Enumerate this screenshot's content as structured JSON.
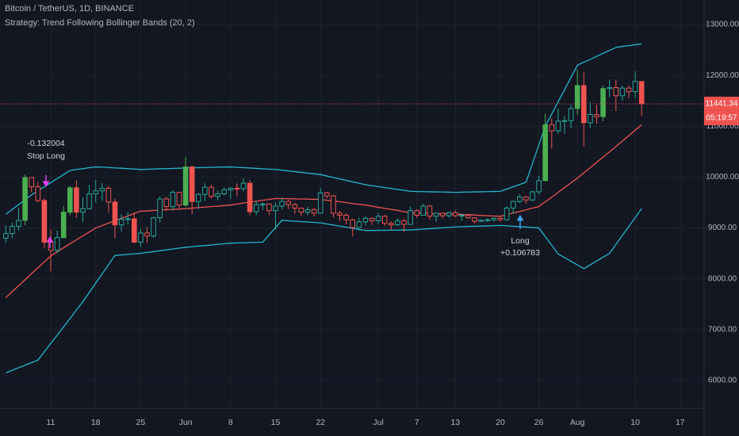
{
  "chart_data": {
    "type": "candlestick",
    "title": "Bitcoin / TetherUS, 1D, BINANCE",
    "subtitle": "Strategy: Trend Following Bollinger Bands (20, 2)",
    "categories": [
      null,
      null,
      null,
      null,
      null,
      null,
      null,
      "11",
      null,
      null,
      null,
      null,
      null,
      null,
      "18",
      null,
      null,
      null,
      null,
      null,
      null,
      "25",
      null,
      null,
      null,
      null,
      null,
      null,
      "Jun",
      null,
      null,
      null,
      null,
      null,
      null,
      "8",
      null,
      null,
      null,
      null,
      null,
      null,
      "15",
      null,
      null,
      null,
      null,
      null,
      null,
      "22",
      null,
      null,
      null,
      null,
      null,
      null,
      null,
      null,
      "Jul",
      null,
      null,
      null,
      null,
      null,
      "7",
      null,
      null,
      null,
      null,
      null,
      "13",
      null,
      null,
      null,
      null,
      null,
      null,
      "20",
      null,
      null,
      null,
      null,
      null,
      "26",
      null,
      null,
      null,
      null,
      null,
      "Aug",
      null,
      null,
      null,
      null,
      null,
      null,
      null,
      null,
      "10",
      null,
      null,
      null,
      null,
      null,
      null,
      "17",
      null,
      null,
      null
    ],
    "open": [
      8800,
      8890,
      9030,
      9150,
      9990,
      9810,
      9540,
      8720,
      8560,
      8810,
      9310,
      9790,
      9310,
      9380,
      9670,
      9730,
      9780,
      9510,
      9060,
      9170,
      9180,
      8720,
      8900,
      8840,
      9200,
      9570,
      9420,
      9700,
      9450,
      10200,
      9520,
      9660,
      9800,
      9620,
      9670,
      9750,
      9780,
      9770,
      9880,
      9320,
      9460,
      9470,
      9340,
      9430,
      9520,
      9460,
      9390,
      9310,
      9360,
      9290,
      9690,
      9630,
      9290,
      9250,
      9160,
      9010,
      9120,
      9190,
      9140,
      9230,
      9090,
      9060,
      9140,
      9070,
      9340,
      9250,
      9430,
      9230,
      9290,
      9240,
      9300,
      9240,
      9250,
      9200,
      9130,
      9150,
      9160,
      9190,
      9160,
      9390,
      9520,
      9610,
      9550,
      9710,
      9930,
      11030,
      10910,
      11100,
      11110,
      11350,
      11800,
      11070,
      11230,
      11190,
      11740,
      11760,
      11600,
      11750,
      11680,
      11880,
      null,
      null,
      null,
      null,
      null,
      null,
      null,
      null,
      null
    ],
    "high": [
      9050,
      9100,
      9400,
      10050,
      9990,
      9900,
      9580,
      8980,
      8950,
      9430,
      9830,
      9940,
      9600,
      9850,
      9950,
      9880,
      9830,
      9570,
      9270,
      9310,
      9300,
      8980,
      9020,
      9220,
      9620,
      9610,
      9740,
      9710,
      10400,
      10230,
      9690,
      9880,
      9850,
      9740,
      9800,
      9800,
      9880,
      9980,
      9940,
      9530,
      9500,
      9480,
      9500,
      9590,
      9550,
      9490,
      9400,
      9420,
      9400,
      9790,
      9710,
      9650,
      9340,
      9290,
      9180,
      9200,
      9230,
      9200,
      9300,
      9260,
      9130,
      9190,
      9180,
      9420,
      9370,
      9480,
      9450,
      9300,
      9300,
      9320,
      9350,
      9280,
      9280,
      9210,
      9170,
      9190,
      9210,
      9220,
      9430,
      9540,
      9660,
      9630,
      9730,
      10030,
      11250,
      11150,
      11350,
      11200,
      11430,
      12120,
      12070,
      11480,
      11420,
      11800,
      11910,
      11920,
      11800,
      11800,
      12080,
      11890,
      null,
      null,
      null,
      null,
      null,
      null,
      null,
      null,
      null
    ],
    "low": [
      8700,
      8800,
      8950,
      9050,
      9700,
      9500,
      8600,
      8150,
      8500,
      8800,
      9250,
      9200,
      9120,
      9360,
      9500,
      9530,
      9300,
      8800,
      8930,
      9070,
      8700,
      8630,
      8700,
      8810,
      9110,
      9330,
      9340,
      9370,
      9420,
      9270,
      9370,
      9530,
      9580,
      9540,
      9640,
      9570,
      9620,
      9720,
      9250,
      9250,
      9350,
      9250,
      8970,
      9370,
      9370,
      9280,
      9230,
      9250,
      9230,
      9280,
      9580,
      9200,
      9140,
      9070,
      8830,
      8950,
      9050,
      9060,
      9080,
      9040,
      8960,
      9040,
      8920,
      9060,
      9200,
      9240,
      9160,
      9120,
      9190,
      9200,
      9210,
      9140,
      9180,
      9090,
      9120,
      9120,
      9120,
      9130,
      9140,
      9280,
      9490,
      9480,
      9530,
      9660,
      9920,
      10560,
      10850,
      10850,
      10960,
      11230,
      10600,
      10960,
      11050,
      11100,
      11570,
      11300,
      11500,
      11550,
      11550,
      11200,
      null,
      null,
      null,
      null,
      null,
      null,
      null,
      null,
      null
    ],
    "close": [
      8890,
      9030,
      9150,
      9990,
      9810,
      9540,
      8720,
      8560,
      8810,
      9310,
      9790,
      9310,
      9380,
      9670,
      9730,
      9780,
      9510,
      9060,
      9170,
      9180,
      8720,
      8900,
      8840,
      9200,
      9570,
      9420,
      9700,
      9450,
      10200,
      9520,
      9660,
      9800,
      9620,
      9670,
      9750,
      9780,
      9770,
      9880,
      9320,
      9460,
      9470,
      9340,
      9430,
      9520,
      9460,
      9390,
      9310,
      9360,
      9290,
      9690,
      9630,
      9290,
      9250,
      9160,
      9010,
      9120,
      9190,
      9140,
      9230,
      9090,
      9060,
      9140,
      9070,
      9340,
      9250,
      9430,
      9230,
      9290,
      9240,
      9300,
      9240,
      9250,
      9200,
      9130,
      9150,
      9160,
      9190,
      9160,
      9390,
      9520,
      9610,
      9550,
      9710,
      9930,
      11030,
      10910,
      11100,
      11110,
      11350,
      11800,
      11070,
      11230,
      11190,
      11740,
      11760,
      11600,
      11750,
      11680,
      11880,
      11441.34,
      null,
      null,
      null,
      null,
      null,
      null,
      null,
      null,
      null
    ],
    "up_color": "#26a69a",
    "down_color": "#ef5350",
    "upper_band": {
      "color": "#26b6cc",
      "values": [
        9270,
        9365,
        9460,
        9555,
        9650,
        9730,
        9810,
        9890,
        9970,
        10050,
        10130,
        10150,
        10165,
        10185,
        10200,
        10195,
        10190,
        10180,
        10175,
        10165,
        10160,
        10150,
        10155,
        10160,
        10165,
        10165,
        10170,
        10175,
        10180,
        10183,
        10186,
        10189,
        10192,
        10195,
        10198,
        10200,
        10193,
        10186,
        10179,
        10171,
        10164,
        10157,
        10150,
        10136,
        10121,
        10107,
        10093,
        10079,
        10064,
        10050,
        10021,
        9993,
        9964,
        9936,
        9907,
        9879,
        9850,
        9831,
        9813,
        9794,
        9776,
        9757,
        9739,
        9720,
        9717,
        9714,
        9711,
        9709,
        9706,
        9703,
        9700,
        9703,
        9706,
        9709,
        9711,
        9714,
        9717,
        9720,
        9765,
        9810,
        9855,
        9900,
        10265,
        10635,
        11000,
        11240,
        11480,
        11720,
        11960,
        12200,
        12260,
        12315,
        12375,
        12435,
        12490,
        12550,
        12570,
        12585,
        12605,
        12620,
        null,
        null,
        null,
        null,
        null,
        null,
        null,
        null,
        null
      ]
    },
    "basis": {
      "color": "#ef5350",
      "values": [
        7630,
        7750,
        7865,
        7980,
        8100,
        8215,
        8330,
        8450,
        8530,
        8610,
        8690,
        8765,
        8845,
        8920,
        9000,
        9045,
        9095,
        9140,
        9190,
        9235,
        9285,
        9330,
        9335,
        9345,
        9350,
        9360,
        9365,
        9370,
        9380,
        9390,
        9400,
        9410,
        9420,
        9430,
        9440,
        9450,
        9470,
        9490,
        9505,
        9525,
        9545,
        9560,
        9580,
        9578,
        9575,
        9572,
        9570,
        9567,
        9563,
        9560,
        9545,
        9530,
        9515,
        9500,
        9480,
        9465,
        9450,
        9430,
        9405,
        9385,
        9365,
        9345,
        9320,
        9300,
        9295,
        9290,
        9285,
        9280,
        9280,
        9275,
        9270,
        9265,
        9260,
        9255,
        9245,
        9240,
        9235,
        9230,
        9260,
        9295,
        9325,
        9355,
        9390,
        9420,
        9515,
        9605,
        9700,
        9795,
        9885,
        9980,
        10085,
        10185,
        10290,
        10395,
        10495,
        10600,
        10710,
        10815,
        10925,
        11030,
        null,
        null,
        null,
        null,
        null,
        null,
        null,
        null,
        null
      ]
    },
    "lower_band": {
      "color": "#26b6cc",
      "values": [
        6150,
        6200,
        6250,
        6300,
        6350,
        6400,
        6565,
        6730,
        6890,
        7055,
        7220,
        7385,
        7550,
        7730,
        7915,
        8095,
        8280,
        8460,
        8470,
        8480,
        8490,
        8500,
        8517,
        8534,
        8551,
        8569,
        8586,
        8603,
        8620,
        8631,
        8643,
        8654,
        8666,
        8677,
        8689,
        8700,
        8704,
        8708,
        8712,
        8716,
        8720,
        8863,
        9007,
        9150,
        9142,
        9133,
        9125,
        9117,
        9108,
        9100,
        9079,
        9057,
        9036,
        9014,
        8993,
        8971,
        8950,
        8951,
        8953,
        8954,
        8956,
        8957,
        8959,
        8960,
        8969,
        8977,
        8986,
        8994,
        9003,
        9011,
        9020,
        9024,
        9029,
        9033,
        9037,
        9041,
        9046,
        9050,
        9042,
        9033,
        9025,
        9017,
        9008,
        9000,
        8830,
        8660,
        8490,
        8418,
        8345,
        8273,
        8200,
        8275,
        8350,
        8425,
        8500,
        8676,
        8852,
        9028,
        9204,
        9380,
        null,
        null,
        null,
        null,
        null,
        null,
        null,
        null,
        null
      ]
    },
    "ylim": [
      5454,
      13483
    ],
    "yticks": [
      {
        "value": 6000,
        "label": "6000.00"
      },
      {
        "value": 7000,
        "label": "7000.00"
      },
      {
        "value": 8000,
        "label": "8000.00"
      },
      {
        "value": 9000,
        "label": "9000.00"
      },
      {
        "value": 10000,
        "label": "10000.00"
      },
      {
        "value": 11000,
        "label": "11000.00"
      },
      {
        "value": 12000,
        "label": "12000.00"
      },
      {
        "value": 13000,
        "label": "13000.00"
      }
    ],
    "grid": true,
    "last_price": 11441.34,
    "countdown": "05:19:57",
    "annotations": [
      "-0.132004",
      "Stop Long",
      "Long",
      "+0.106783"
    ]
  }
}
